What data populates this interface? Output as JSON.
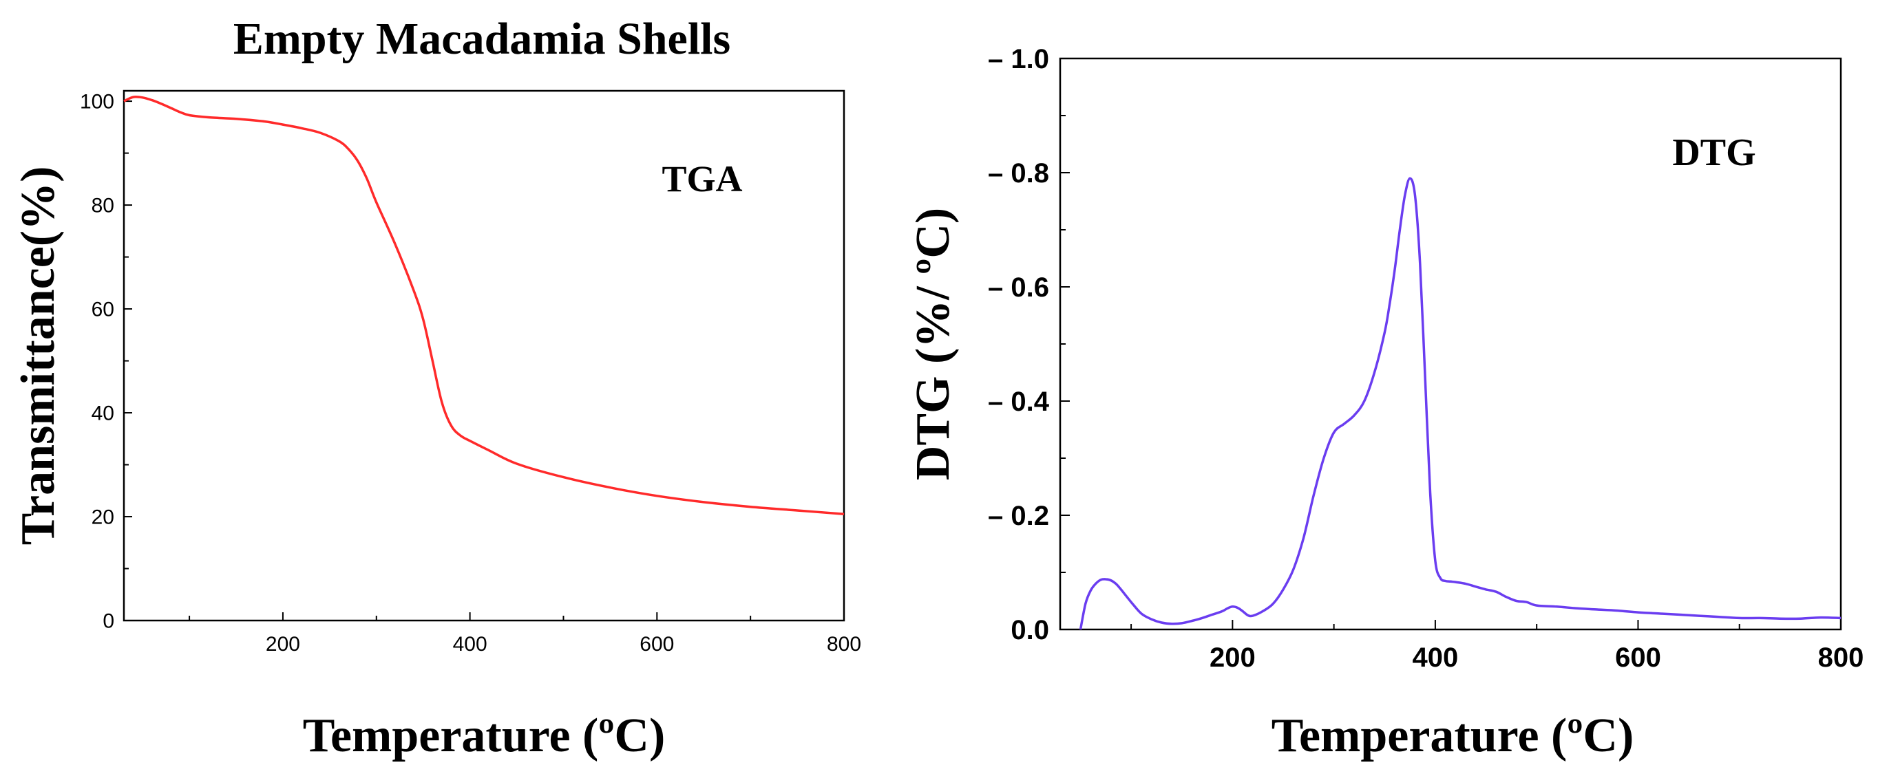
{
  "figure_title": "Empty Macadamia Shells",
  "chart_data": [
    {
      "type": "line",
      "title": "Empty Macadamia Shells",
      "annotation": "TGA",
      "xlabel": "Temperature (ºC)",
      "ylabel": "Transmittance(%)",
      "xlim": [
        30,
        800
      ],
      "ylim": [
        0,
        102
      ],
      "xticks": [
        200,
        400,
        600,
        800
      ],
      "yticks": [
        0,
        20,
        40,
        60,
        80,
        100
      ],
      "xtick_labels": [
        "200",
        "400",
        "600",
        "800"
      ],
      "ytick_labels": [
        "0",
        "20",
        "40",
        "60",
        "80",
        "100"
      ],
      "grid": false,
      "series": [
        {
          "name": "TGA",
          "color": "#ff2a2a",
          "x": [
            30,
            40,
            50,
            60,
            70,
            80,
            90,
            100,
            120,
            150,
            180,
            200,
            220,
            240,
            260,
            270,
            280,
            290,
            300,
            320,
            340,
            350,
            360,
            370,
            380,
            390,
            400,
            420,
            450,
            500,
            550,
            600,
            650,
            700,
            750,
            800
          ],
          "y": [
            100,
            100.8,
            100.7,
            100.2,
            99.5,
            98.7,
            97.9,
            97.3,
            96.9,
            96.6,
            96.1,
            95.5,
            94.8,
            93.9,
            92.3,
            90.8,
            88.5,
            85.0,
            80.5,
            72.5,
            63.5,
            58.0,
            50.0,
            42.0,
            37.5,
            35.6,
            34.6,
            32.8,
            30.2,
            27.6,
            25.6,
            24.0,
            22.8,
            21.9,
            21.2,
            20.5
          ]
        }
      ]
    },
    {
      "type": "line",
      "annotation": "DTG",
      "xlabel": "Temperature (ºC)",
      "ylabel": "DTG (%/ ºC)",
      "xlim": [
        30,
        800
      ],
      "ylim": [
        0,
        1.0
      ],
      "xticks": [
        200,
        400,
        600,
        800
      ],
      "yticks": [
        0.0,
        0.2,
        0.4,
        0.6,
        0.8,
        1.0
      ],
      "xtick_labels": [
        "200",
        "400",
        "600",
        "800"
      ],
      "ytick_labels": [
        "0.0",
        "– 0.2",
        "– 0.4",
        "– 0.6",
        "– 0.8",
        "– 1.0"
      ],
      "grid": false,
      "series": [
        {
          "name": "DTG",
          "color": "#6a3df0",
          "x": [
            50,
            55,
            60,
            65,
            70,
            75,
            80,
            85,
            90,
            100,
            110,
            120,
            130,
            140,
            150,
            160,
            170,
            180,
            190,
            195,
            200,
            205,
            210,
            215,
            220,
            230,
            240,
            250,
            260,
            270,
            280,
            290,
            300,
            310,
            320,
            330,
            340,
            350,
            355,
            360,
            365,
            370,
            375,
            380,
            385,
            390,
            395,
            400,
            405,
            410,
            415,
            420,
            430,
            440,
            450,
            460,
            470,
            480,
            490,
            500,
            520,
            540,
            560,
            580,
            600,
            620,
            640,
            660,
            680,
            700,
            720,
            740,
            760,
            780,
            800
          ],
          "y": [
            0.0,
            0.045,
            0.068,
            0.08,
            0.087,
            0.088,
            0.086,
            0.08,
            0.07,
            0.048,
            0.028,
            0.018,
            0.012,
            0.01,
            0.011,
            0.015,
            0.02,
            0.026,
            0.032,
            0.037,
            0.04,
            0.038,
            0.032,
            0.025,
            0.024,
            0.032,
            0.045,
            0.07,
            0.105,
            0.16,
            0.235,
            0.3,
            0.345,
            0.36,
            0.375,
            0.4,
            0.45,
            0.52,
            0.57,
            0.63,
            0.7,
            0.76,
            0.79,
            0.76,
            0.64,
            0.44,
            0.24,
            0.12,
            0.09,
            0.085,
            0.084,
            0.083,
            0.08,
            0.075,
            0.07,
            0.066,
            0.057,
            0.05,
            0.048,
            0.042,
            0.04,
            0.037,
            0.035,
            0.033,
            0.03,
            0.028,
            0.026,
            0.024,
            0.022,
            0.02,
            0.02,
            0.019,
            0.019,
            0.021,
            0.02
          ]
        }
      ]
    }
  ]
}
